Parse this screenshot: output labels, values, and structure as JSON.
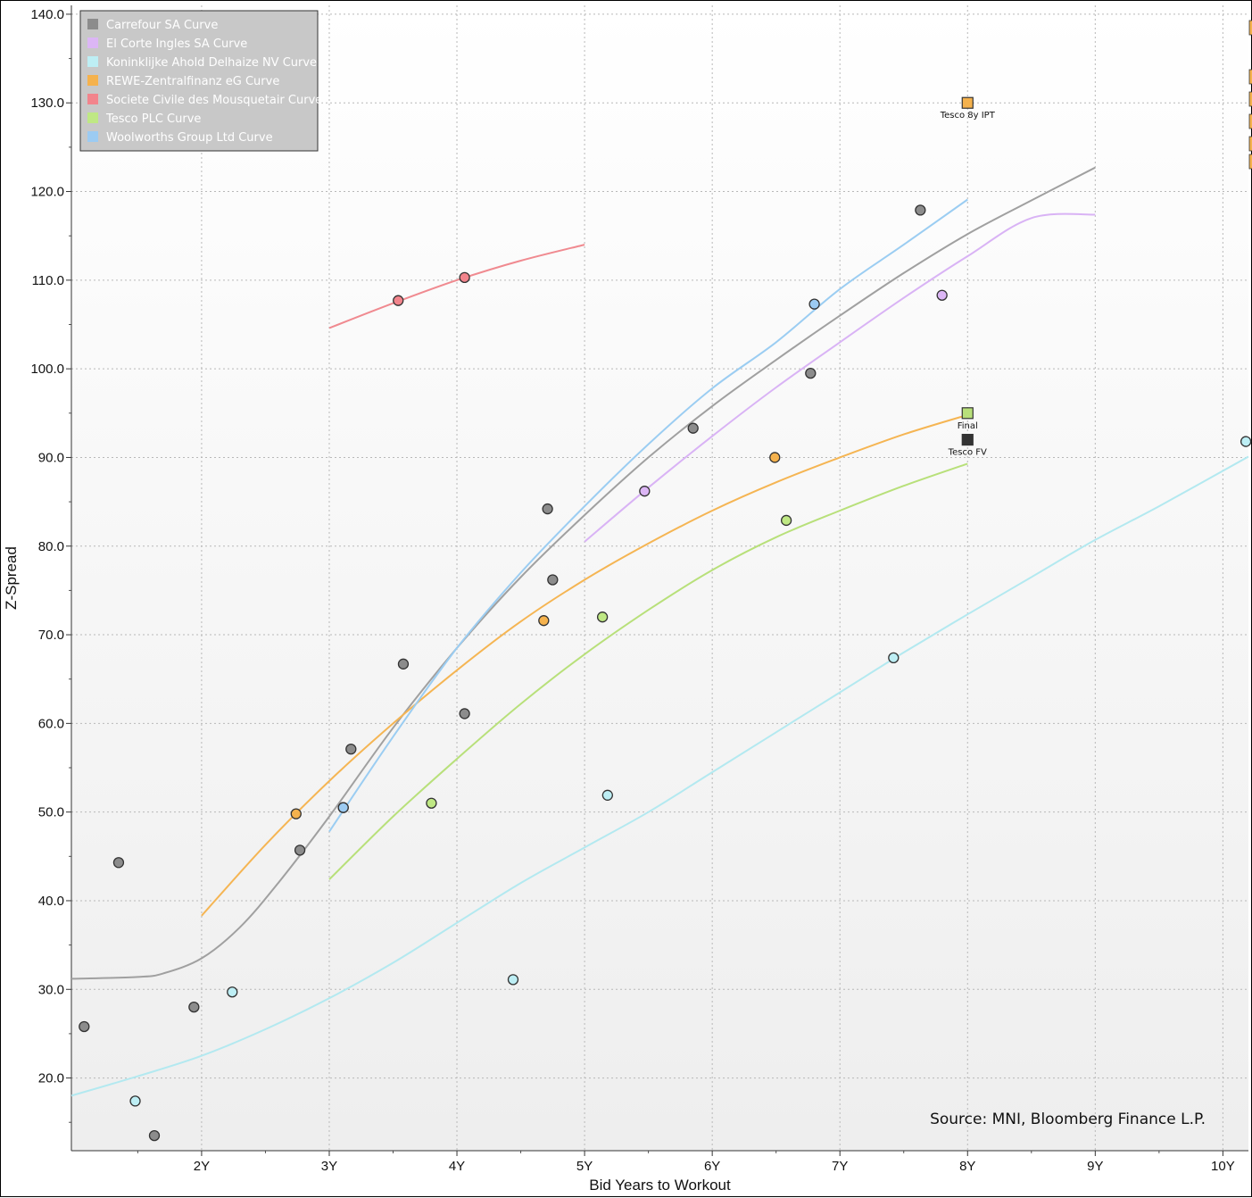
{
  "chart_data": {
    "type": "scatter",
    "xlabel": "Bid Years to Workout",
    "ylabel": "Z-Spread",
    "xlim": [
      0.98,
      10.2
    ],
    "ylim": [
      11.8,
      141.0
    ],
    "x_ticks": [
      {
        "value": 2,
        "label": "2Y"
      },
      {
        "value": 3,
        "label": "3Y"
      },
      {
        "value": 4,
        "label": "4Y"
      },
      {
        "value": 5,
        "label": "5Y"
      },
      {
        "value": 6,
        "label": "6Y"
      },
      {
        "value": 7,
        "label": "7Y"
      },
      {
        "value": 8,
        "label": "8Y"
      },
      {
        "value": 9,
        "label": "9Y"
      },
      {
        "value": 10,
        "label": "10Y"
      }
    ],
    "y_ticks": [
      {
        "value": 20,
        "label": "20.0"
      },
      {
        "value": 30,
        "label": "30.0"
      },
      {
        "value": 40,
        "label": "40.0"
      },
      {
        "value": 50,
        "label": "50.0"
      },
      {
        "value": 60,
        "label": "60.0"
      },
      {
        "value": 70,
        "label": "70.0"
      },
      {
        "value": 80,
        "label": "80.0"
      },
      {
        "value": 90,
        "label": "90.0"
      },
      {
        "value": 100,
        "label": "100.0"
      },
      {
        "value": 110,
        "label": "110.0"
      },
      {
        "value": 120,
        "label": "120.0"
      },
      {
        "value": 130,
        "label": "130.0"
      },
      {
        "value": 140,
        "label": "140.0"
      }
    ],
    "grid": true,
    "legend_position": "top-left",
    "source": "Source: MNI, Bloomberg Finance L.P.",
    "series": [
      {
        "name": "Carrefour SA Curve",
        "color": "#a0a0a0",
        "marker_color": "#8c8c8c",
        "points": [
          [
            1.08,
            25.8
          ],
          [
            1.35,
            44.3
          ],
          [
            1.63,
            13.5
          ],
          [
            1.94,
            28.0
          ],
          [
            2.77,
            45.7
          ],
          [
            3.17,
            57.1
          ],
          [
            3.58,
            66.7
          ],
          [
            4.06,
            61.1
          ],
          [
            4.71,
            84.2
          ],
          [
            4.75,
            76.2
          ],
          [
            5.85,
            93.3
          ],
          [
            6.77,
            99.5
          ],
          [
            7.63,
            117.9
          ]
        ],
        "curve": [
          [
            0.98,
            31.2
          ],
          [
            1.5,
            31.4
          ],
          [
            1.7,
            31.8
          ],
          [
            2.0,
            33.5
          ],
          [
            2.3,
            37.0
          ],
          [
            2.6,
            42.0
          ],
          [
            3.0,
            49.5
          ],
          [
            3.5,
            59.5
          ],
          [
            4.0,
            68.5
          ],
          [
            4.5,
            76.5
          ],
          [
            5.0,
            83.5
          ],
          [
            5.5,
            90.0
          ],
          [
            6.0,
            95.8
          ],
          [
            6.5,
            101.0
          ],
          [
            7.0,
            106.0
          ],
          [
            7.5,
            110.8
          ],
          [
            8.0,
            115.2
          ],
          [
            8.5,
            119.0
          ],
          [
            9.0,
            122.7
          ]
        ]
      },
      {
        "name": "El Corte Ingles SA Curve",
        "color": "#d9b3f5",
        "marker_color": "#dcb6f5",
        "points": [
          [
            5.47,
            86.2
          ],
          [
            7.8,
            108.3
          ]
        ],
        "curve": [
          [
            5.0,
            80.5
          ],
          [
            5.5,
            86.6
          ],
          [
            6.0,
            92.4
          ],
          [
            6.5,
            97.9
          ],
          [
            7.0,
            103.0
          ],
          [
            7.5,
            108.0
          ],
          [
            8.0,
            112.7
          ],
          [
            8.5,
            117.0
          ],
          [
            9.0,
            117.4
          ]
        ]
      },
      {
        "name": "Koninklijke Ahold Delhaize NV Curve",
        "color": "#b3e9f0",
        "marker_color": "#bdeef4",
        "points": [
          [
            1.48,
            17.4
          ],
          [
            2.24,
            29.7
          ],
          [
            3.11,
            50.5
          ],
          [
            4.44,
            31.1
          ],
          [
            5.18,
            51.9
          ],
          [
            7.42,
            67.4
          ],
          [
            10.18,
            91.8
          ]
        ],
        "curve": [
          [
            0.98,
            18.0
          ],
          [
            1.5,
            20.2
          ],
          [
            2.0,
            22.5
          ],
          [
            2.5,
            25.5
          ],
          [
            3.0,
            29.0
          ],
          [
            3.5,
            33.0
          ],
          [
            4.0,
            37.5
          ],
          [
            4.5,
            42.0
          ],
          [
            5.0,
            46.0
          ],
          [
            5.5,
            50.0
          ],
          [
            6.0,
            54.5
          ],
          [
            6.5,
            59.0
          ],
          [
            7.0,
            63.5
          ],
          [
            7.5,
            68.0
          ],
          [
            8.0,
            72.3
          ],
          [
            8.5,
            76.5
          ],
          [
            9.0,
            80.7
          ],
          [
            9.5,
            84.5
          ],
          [
            10.2,
            90.1
          ]
        ]
      },
      {
        "name": "REWE-Zentralfinanz eG Curve",
        "color": "#f5b553",
        "marker_color": "#f5b24d",
        "points": [
          [
            2.74,
            49.8
          ],
          [
            4.68,
            71.6
          ],
          [
            6.49,
            90.0
          ]
        ],
        "curve": [
          [
            2.0,
            38.3
          ],
          [
            2.5,
            46.3
          ],
          [
            3.0,
            53.5
          ],
          [
            3.5,
            60.0
          ],
          [
            4.0,
            66.0
          ],
          [
            4.5,
            71.5
          ],
          [
            5.0,
            76.2
          ],
          [
            5.5,
            80.3
          ],
          [
            6.0,
            84.0
          ],
          [
            6.5,
            87.2
          ],
          [
            7.0,
            90.0
          ],
          [
            7.5,
            92.6
          ],
          [
            8.0,
            94.8
          ]
        ]
      },
      {
        "name": "Societe Civile des Mousquetair Curve",
        "color": "#f08a90",
        "marker_color": "#f2848c",
        "points": [
          [
            3.54,
            107.7
          ],
          [
            4.06,
            110.3
          ]
        ],
        "curve": [
          [
            3.0,
            104.6
          ],
          [
            3.5,
            107.4
          ],
          [
            4.0,
            110.0
          ],
          [
            4.5,
            112.2
          ],
          [
            5.0,
            114.0
          ]
        ]
      },
      {
        "name": "Tesco PLC Curve",
        "color": "#b8e07a",
        "marker_color": "#bfe884",
        "points": [
          [
            3.8,
            51.0
          ],
          [
            5.14,
            72.0
          ],
          [
            6.58,
            82.9
          ]
        ],
        "curve": [
          [
            3.0,
            42.4
          ],
          [
            3.5,
            49.5
          ],
          [
            4.0,
            56.0
          ],
          [
            4.5,
            62.2
          ],
          [
            5.0,
            67.8
          ],
          [
            5.5,
            72.8
          ],
          [
            6.0,
            77.3
          ],
          [
            6.5,
            81.0
          ],
          [
            7.0,
            84.0
          ],
          [
            7.5,
            86.8
          ],
          [
            8.0,
            89.3
          ]
        ]
      },
      {
        "name": "Woolworths Group Ltd Curve",
        "color": "#9bcdf2",
        "marker_color": "#9ccbf2",
        "points": [
          [
            3.11,
            50.5
          ],
          [
            6.8,
            107.3
          ]
        ],
        "curve": [
          [
            3.0,
            47.8
          ],
          [
            3.5,
            58.5
          ],
          [
            4.0,
            68.5
          ],
          [
            4.5,
            77.0
          ],
          [
            5.0,
            84.5
          ],
          [
            5.5,
            91.5
          ],
          [
            6.0,
            97.8
          ],
          [
            6.5,
            103.0
          ],
          [
            7.0,
            109.0
          ],
          [
            7.5,
            114.0
          ],
          [
            8.0,
            119.1
          ]
        ]
      }
    ],
    "annotations": [
      {
        "label": "Tesco 8y IPT",
        "x": 8.0,
        "y": 130.0,
        "marker": "square",
        "color": "#f5b24d"
      },
      {
        "label": "Final",
        "x": 8.0,
        "y": 95.0,
        "marker": "square",
        "color": "#b8e07a"
      },
      {
        "label": "Tesco FV",
        "x": 8.0,
        "y": 92.0,
        "marker": "square",
        "color": "#333333"
      }
    ]
  }
}
